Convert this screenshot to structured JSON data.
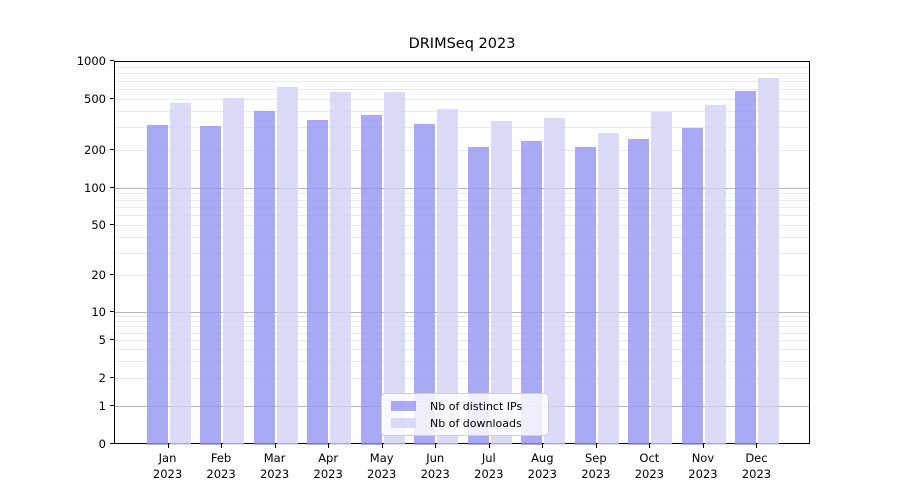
{
  "chart_data": {
    "type": "bar",
    "title": "DRIMSeq 2023",
    "year_label": "2023",
    "categories": [
      "Jan",
      "Feb",
      "Mar",
      "Apr",
      "May",
      "Jun",
      "Jul",
      "Aug",
      "Sep",
      "Oct",
      "Nov",
      "Dec"
    ],
    "series": [
      {
        "name": "Nb of distinct IPs",
        "color": "#9494f2",
        "alpha": 0.8,
        "values": [
          318,
          310,
          413,
          348,
          381,
          323,
          215,
          236,
          215,
          246,
          303,
          590
        ]
      },
      {
        "name": "Nb of downloads",
        "color": "#d2d2f6",
        "alpha": 0.8,
        "values": [
          473,
          519,
          640,
          582,
          575,
          426,
          343,
          359,
          277,
          405,
          455,
          745
        ]
      }
    ],
    "yticks": [
      "1000",
      "500",
      "200",
      "100",
      "50",
      "20",
      "10",
      "5",
      "2",
      "1",
      "0"
    ],
    "yscale": "symlog",
    "ylim": [
      0,
      1000
    ],
    "grid": "on",
    "legend_position": "lower center",
    "colors": {
      "major_grid": "#b6b6b6",
      "minor_grid": "#ebebeb",
      "axis": "#000000",
      "background": "#ffffff"
    }
  }
}
